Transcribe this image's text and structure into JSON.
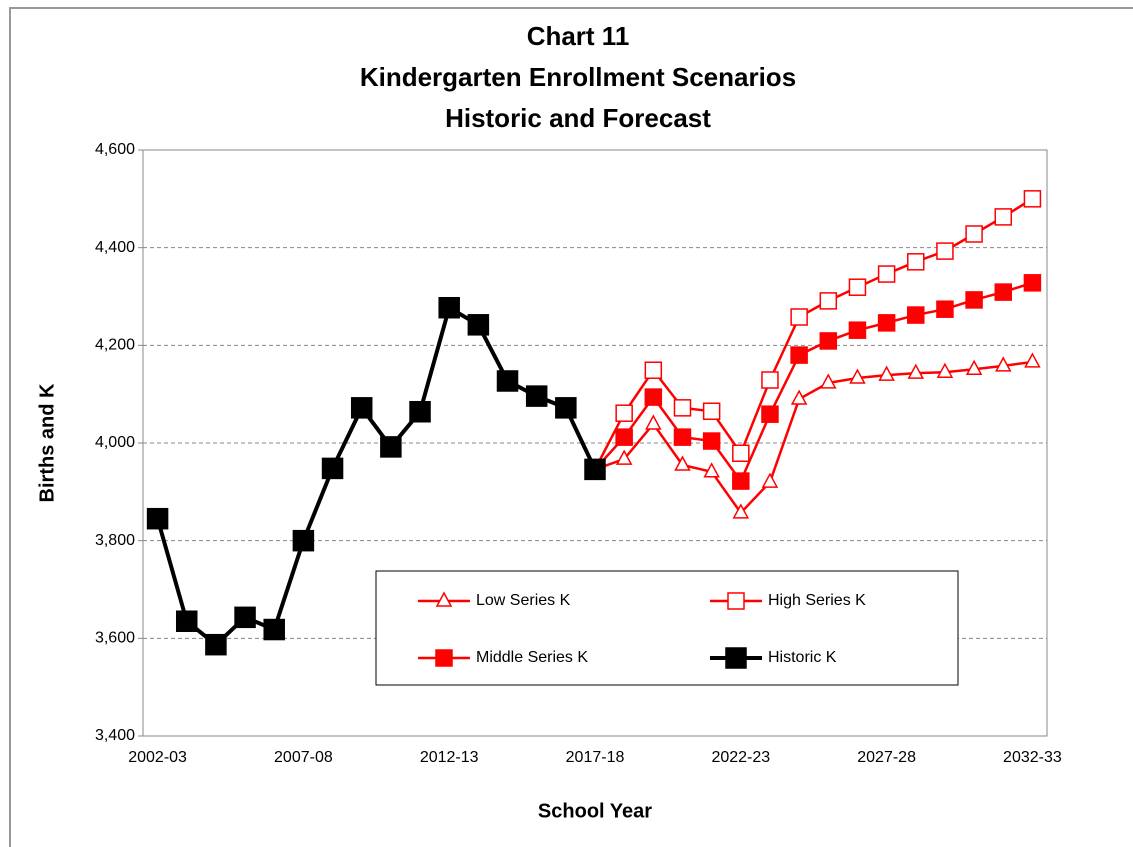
{
  "chart_data": {
    "type": "line",
    "title": [
      "Chart 11",
      "Kindergarten Enrollment Scenarios",
      "Historic and Forecast"
    ],
    "x_label": "School Year",
    "y_label": "Births and K",
    "categories": [
      "2002-03",
      null,
      null,
      null,
      null,
      "2007-08",
      null,
      null,
      null,
      null,
      "2012-13",
      null,
      null,
      null,
      null,
      "2017-18",
      null,
      null,
      null,
      null,
      "2022-23",
      null,
      null,
      null,
      null,
      "2027-28",
      null,
      null,
      null,
      null,
      "2032-33"
    ],
    "ylim": [
      3400,
      4600
    ],
    "yticks": [
      {
        "value": 3400,
        "label": "3,400"
      },
      {
        "value": 3600,
        "label": "3,600"
      },
      {
        "value": 3800,
        "label": "3,800"
      },
      {
        "value": 4000,
        "label": "4,000"
      },
      {
        "value": 4200,
        "label": "4,200"
      },
      {
        "value": 4400,
        "label": "4,400"
      },
      {
        "value": 4600,
        "label": "4,600"
      }
    ],
    "grid": true,
    "legend": "bottom-center",
    "series": [
      {
        "name": "Low Series K",
        "color": "#ff0000",
        "marker": "triangle-open",
        "values": [
          null,
          null,
          null,
          null,
          null,
          null,
          null,
          null,
          null,
          null,
          null,
          null,
          null,
          null,
          null,
          3946,
          3967,
          4039,
          3955,
          3941,
          3857,
          3920,
          4090,
          4123,
          4133,
          4139,
          4143,
          4145,
          4151,
          4158,
          4166
        ]
      },
      {
        "name": "High Series K",
        "color": "#ff0000",
        "marker": "square-open",
        "values": [
          null,
          null,
          null,
          null,
          null,
          null,
          null,
          null,
          null,
          null,
          null,
          null,
          null,
          null,
          null,
          3946,
          4061,
          4149,
          4072,
          4065,
          3979,
          4129,
          4258,
          4291,
          4319,
          4346,
          4371,
          4393,
          4428,
          4463,
          4500
        ]
      },
      {
        "name": "Middle Series K",
        "color": "#ff0000",
        "marker": "square",
        "values": [
          null,
          null,
          null,
          null,
          null,
          null,
          null,
          null,
          null,
          null,
          null,
          null,
          null,
          null,
          null,
          3946,
          4012,
          4094,
          4012,
          4004,
          3922,
          4059,
          4180,
          4209,
          4231,
          4246,
          4262,
          4274,
          4293,
          4309,
          4328
        ]
      },
      {
        "name": "Historic K",
        "color": "#000000",
        "marker": "square-big",
        "values": [
          3845,
          3635,
          3587,
          3643,
          3618,
          3800,
          3948,
          4072,
          3992,
          4064,
          4277,
          4242,
          4127,
          4096,
          4072,
          3946,
          null,
          null,
          null,
          null,
          null,
          null,
          null,
          null,
          null,
          null,
          null,
          null,
          null,
          null,
          null
        ]
      }
    ]
  }
}
